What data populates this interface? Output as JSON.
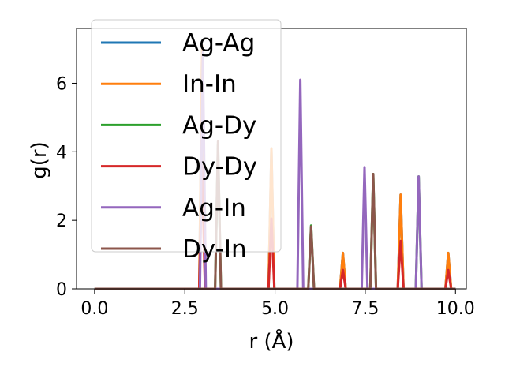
{
  "chart_data": {
    "type": "line",
    "xlabel": "r (Å)",
    "ylabel": "g(r)",
    "xlim": [
      -0.5,
      10.3
    ],
    "ylim": [
      0,
      7.6
    ],
    "xticks": [
      0.0,
      2.5,
      5.0,
      7.5,
      10.0
    ],
    "xtick_labels": [
      "0.0",
      "2.5",
      "5.0",
      "7.5",
      "10.0"
    ],
    "yticks": [
      0,
      2,
      4,
      6
    ],
    "ytick_labels": [
      "0",
      "2",
      "4",
      "6"
    ],
    "legend_position": "top-left",
    "grid": false,
    "series": [
      {
        "name": "Ag-Ag",
        "color": "#1f77b4",
        "peaks": [
          [
            2.98,
            7.1
          ],
          [
            4.9,
            4.1
          ],
          [
            6.88,
            1.05
          ],
          [
            8.48,
            2.75
          ],
          [
            9.8,
            1.05
          ]
        ]
      },
      {
        "name": "In-In",
        "color": "#ff7f0e",
        "peaks": [
          [
            2.98,
            7.1
          ],
          [
            4.9,
            4.1
          ],
          [
            6.88,
            1.05
          ],
          [
            8.48,
            2.75
          ],
          [
            9.8,
            1.05
          ]
        ]
      },
      {
        "name": "Ag-Dy",
        "color": "#2ca02c",
        "peaks": [
          [
            3.42,
            4.2
          ],
          [
            6.0,
            1.85
          ],
          [
            7.72,
            3.35
          ],
          [
            8.98,
            3.28
          ]
        ]
      },
      {
        "name": "Dy-Dy",
        "color": "#d62728",
        "peaks": [
          [
            2.98,
            3.55
          ],
          [
            4.9,
            2.05
          ],
          [
            6.88,
            0.55
          ],
          [
            8.48,
            1.4
          ],
          [
            9.8,
            0.55
          ]
        ]
      },
      {
        "name": "Ag-In",
        "color": "#9467bd",
        "peaks": [
          [
            3.0,
            6.9
          ],
          [
            5.7,
            6.1
          ],
          [
            7.48,
            3.55
          ],
          [
            8.98,
            3.28
          ]
        ]
      },
      {
        "name": "Dy-In",
        "color": "#8c564b",
        "peaks": [
          [
            3.42,
            4.3
          ],
          [
            6.0,
            1.82
          ],
          [
            7.72,
            3.35
          ]
        ]
      }
    ]
  }
}
